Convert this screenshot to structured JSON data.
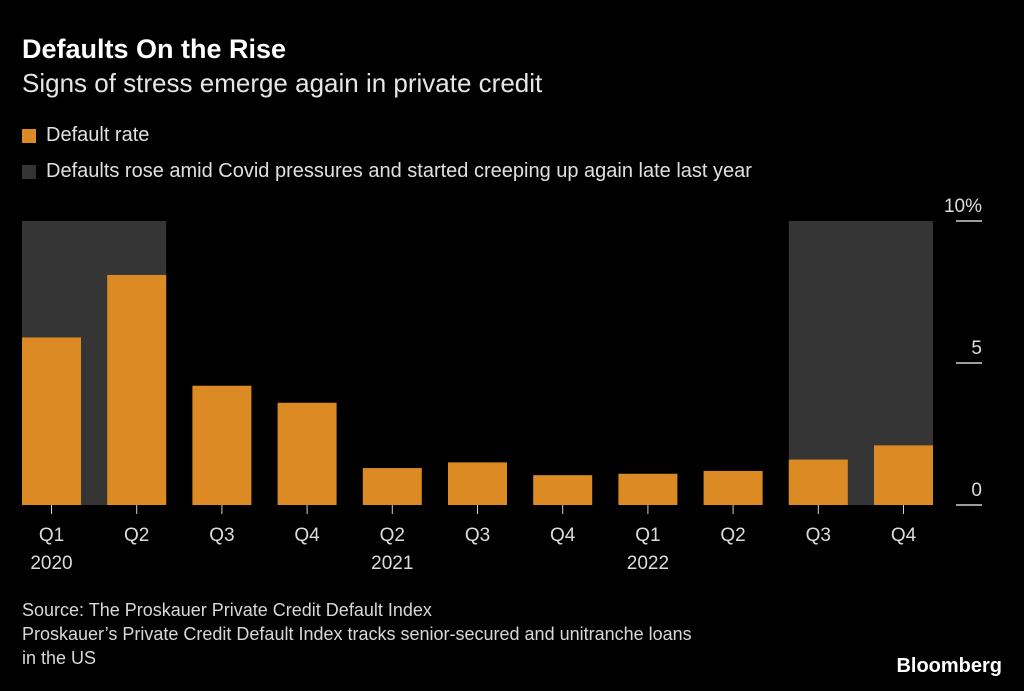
{
  "colors": {
    "bar": "#dc8a23",
    "highlight": "#353535",
    "axis": "#d0d0d0",
    "background": "#000000"
  },
  "source": "Source: The Proskauer Private Credit Default Index",
  "note_line1": "Proskauer’s Private Credit Default Index tracks senior-secured and unitranche loans",
  "note_line2": "in the US",
  "brand": "Bloomberg",
  "chart_data": {
    "type": "bar",
    "title": "Defaults On the Rise",
    "subtitle": "Signs of stress emerge again in private credit",
    "legend": [
      {
        "label": "Default rate",
        "color": "#dc8a23"
      },
      {
        "label": "Defaults rose amid Covid pressures and started creeping up again late last year",
        "color": "#353535"
      }
    ],
    "legend_position": "top-left",
    "categories": [
      "Q1",
      "Q2",
      "Q3",
      "Q4",
      "Q2",
      "Q3",
      "Q4",
      "Q1",
      "Q2",
      "Q3",
      "Q4"
    ],
    "year_labels": [
      "2020",
      "",
      "",
      "",
      "2021",
      "",
      "",
      "2022",
      "",
      "",
      ""
    ],
    "series": [
      {
        "name": "Default rate",
        "values": [
          5.9,
          8.1,
          4.2,
          3.6,
          1.3,
          1.5,
          1.05,
          1.1,
          1.2,
          1.6,
          2.1
        ]
      }
    ],
    "highlighted_ranges": [
      [
        0,
        1
      ],
      [
        9,
        10
      ]
    ],
    "ylim": [
      0,
      10
    ],
    "yticks": [
      0,
      5,
      10
    ],
    "ytick_labels": [
      "0",
      "5",
      "10%"
    ],
    "yaxis_side": "right",
    "xlabel": "",
    "ylabel": "",
    "grid": false
  }
}
